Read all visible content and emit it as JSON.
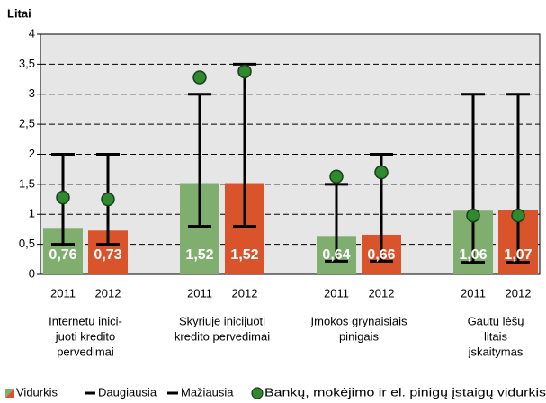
{
  "chart_data": {
    "type": "bar",
    "y_label": "Litai",
    "ylim": [
      0,
      4
    ],
    "yticks": [
      0,
      {
        "value": 0.5,
        "label": "0,5"
      },
      1,
      {
        "value": 1.5,
        "label": "1,5"
      },
      2,
      {
        "value": 2.5,
        "label": "2,5"
      },
      3,
      {
        "value": 3.5,
        "label": "3,5"
      },
      4
    ],
    "grid": true,
    "categories": [
      "2011",
      "2012",
      "2011",
      "2012",
      "2011",
      "2012",
      "2011",
      "2012"
    ],
    "groups": [
      [
        "Internetu inici-",
        "juoti kredito",
        "pervedimai"
      ],
      [
        "Skyriuje inicijuoti",
        "kredito pervedimai"
      ],
      [
        "Įmokos grynaisiais",
        "pinigais"
      ],
      [
        "Gautų lėšų",
        "litais",
        "įskaitymas"
      ]
    ],
    "series": [
      {
        "name": "Vidurkis",
        "kind": "bar",
        "colors": [
          "#80ae6f",
          "#d9532b",
          "#80ae6f",
          "#d9532b",
          "#80ae6f",
          "#d9532b",
          "#80ae6f",
          "#d9532b"
        ],
        "values": [
          0.76,
          0.73,
          1.52,
          1.52,
          0.64,
          0.66,
          1.06,
          1.07
        ],
        "value_labels": [
          "0,76",
          "0,73",
          "1,52",
          "1,52",
          "0,64",
          "0,66",
          "1,06",
          "1,07"
        ]
      },
      {
        "name": "Daugiausia",
        "kind": "max",
        "color": "#000000",
        "values": [
          2,
          2,
          3,
          3.5,
          1.5,
          2,
          3,
          3
        ]
      },
      {
        "name": "Mažiausia",
        "kind": "min",
        "color": "#000000",
        "values": [
          0.5,
          0.5,
          0.8,
          0.8,
          0.22,
          0.22,
          0.2,
          0.2
        ]
      },
      {
        "name": "Bankų, mokėjimo ir el. pinigų įstaigų vidurkis",
        "kind": "dot",
        "color": "#2f8a2f",
        "values": [
          1.28,
          1.25,
          3.28,
          3.38,
          1.63,
          1.7,
          0.98,
          0.98
        ]
      }
    ]
  }
}
